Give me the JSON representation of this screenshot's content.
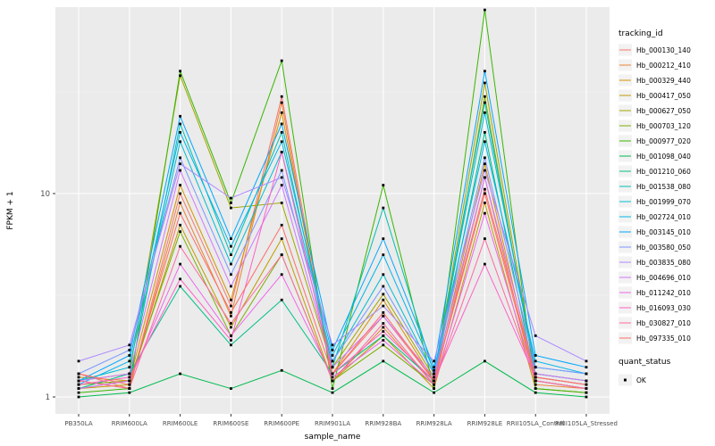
{
  "chart_data": {
    "type": "line",
    "title": "",
    "xlabel": "sample_name",
    "ylabel": "FPKM + 1",
    "y_scale": "log10",
    "y_tick_labels": [
      "1",
      "10"
    ],
    "y_tick_values": [
      1,
      10
    ],
    "y_minor_values": [
      3.1623,
      31.623
    ],
    "ylim": [
      1,
      90
    ],
    "categories": [
      "PB350LA",
      "RRIM600LA",
      "RRIM600LE",
      "RRIM600SE",
      "RRIM600PE",
      "RRIM901LA",
      "RRIM928BA",
      "RRIM928LA",
      "RRIM928LE",
      "RRII105LA_Control",
      "RRII105LA_Stressed"
    ],
    "legend": {
      "color_title": "tracking_id",
      "shape_title": "quant_status",
      "shape_entries": [
        "OK"
      ]
    },
    "colors": {
      "panel_bg": "#EBEBEB",
      "grid_major": "#FFFFFF",
      "grid_minor": "#F7F7F7",
      "point": "#000000",
      "axis_text": "#4D4D4D",
      "tick": "#333333",
      "title_text": "#000000"
    },
    "series": [
      {
        "name": "Hb_000130_140",
        "color": "#F8766D",
        "values": [
          1.3,
          1.1,
          10.0,
          2.8,
          30.0,
          1.3,
          2.5,
          1.2,
          10.0,
          1.2,
          1.1
        ]
      },
      {
        "name": "Hb_000212_410",
        "color": "#EA8331",
        "values": [
          1.2,
          1.1,
          9.0,
          2.5,
          28.0,
          1.2,
          2.2,
          1.15,
          12.0,
          1.15,
          1.1
        ]
      },
      {
        "name": "Hb_000329_440",
        "color": "#D89000",
        "values": [
          1.25,
          1.2,
          11.0,
          3.0,
          25.0,
          1.3,
          3.0,
          1.2,
          14.0,
          1.2,
          1.1
        ]
      },
      {
        "name": "Hb_000417_050",
        "color": "#C09B00",
        "values": [
          1.1,
          1.15,
          7.0,
          2.2,
          6.0,
          1.2,
          2.0,
          1.1,
          9.0,
          1.1,
          1.05
        ]
      },
      {
        "name": "Hb_000627_050",
        "color": "#A3A500",
        "values": [
          1.2,
          1.3,
          38.0,
          8.5,
          9.0,
          1.4,
          3.2,
          1.25,
          35.0,
          1.3,
          1.2
        ]
      },
      {
        "name": "Hb_000703_120",
        "color": "#7CAE00",
        "values": [
          1.15,
          1.2,
          6.5,
          2.0,
          5.0,
          1.2,
          1.8,
          1.15,
          30.0,
          1.25,
          1.15
        ]
      },
      {
        "name": "Hb_000977_020",
        "color": "#39B600",
        "values": [
          1.05,
          1.1,
          40.0,
          9.0,
          45.0,
          1.1,
          11.0,
          1.1,
          80.0,
          1.1,
          1.05
        ]
      },
      {
        "name": "Hb_001098_040",
        "color": "#00BB4E",
        "values": [
          1.0,
          1.05,
          1.3,
          1.1,
          1.35,
          1.05,
          1.5,
          1.05,
          1.5,
          1.05,
          1.0
        ]
      },
      {
        "name": "Hb_001210_060",
        "color": "#00C087",
        "values": [
          1.1,
          1.3,
          3.5,
          1.8,
          3.0,
          1.3,
          2.0,
          1.2,
          20.0,
          1.2,
          1.1
        ]
      },
      {
        "name": "Hb_001538_080",
        "color": "#00C0B2",
        "values": [
          1.1,
          1.2,
          22.0,
          5.0,
          20.0,
          1.4,
          8.5,
          1.3,
          28.0,
          1.3,
          1.2
        ]
      },
      {
        "name": "Hb_001999_070",
        "color": "#00BDD2",
        "values": [
          1.2,
          1.4,
          18.0,
          4.5,
          16.0,
          1.5,
          4.0,
          1.3,
          25.0,
          1.4,
          1.3
        ]
      },
      {
        "name": "Hb_002724_010",
        "color": "#00B5EC",
        "values": [
          1.15,
          1.5,
          20.0,
          5.5,
          18.0,
          1.6,
          5.0,
          1.35,
          18.0,
          1.5,
          1.3
        ]
      },
      {
        "name": "Hb_003145_010",
        "color": "#00A7FF",
        "values": [
          1.2,
          1.6,
          24.0,
          6.0,
          22.0,
          1.7,
          6.0,
          1.4,
          40.0,
          1.6,
          1.4
        ]
      },
      {
        "name": "Hb_003580_050",
        "color": "#7997FF",
        "values": [
          1.3,
          1.7,
          15.0,
          4.0,
          13.0,
          1.5,
          3.5,
          1.3,
          15.0,
          1.4,
          1.3
        ]
      },
      {
        "name": "Hb_003835_080",
        "color": "#AC88FF",
        "values": [
          1.5,
          1.8,
          14.0,
          9.5,
          12.0,
          1.8,
          2.8,
          1.5,
          13.0,
          2.0,
          1.5
        ]
      },
      {
        "name": "Hb_004696_010",
        "color": "#D277FF",
        "values": [
          1.2,
          1.3,
          13.0,
          3.5,
          11.0,
          1.4,
          2.5,
          1.25,
          12.0,
          1.3,
          1.2
        ]
      },
      {
        "name": "Hb_011242_010",
        "color": "#EF67EB",
        "values": [
          1.1,
          1.2,
          4.5,
          2.0,
          4.0,
          1.25,
          1.9,
          1.15,
          8.0,
          1.2,
          1.1
        ]
      },
      {
        "name": "Hb_016093_030",
        "color": "#FF61C7",
        "values": [
          1.15,
          1.25,
          3.8,
          1.9,
          16.0,
          1.3,
          2.1,
          1.2,
          4.5,
          1.25,
          1.15
        ]
      },
      {
        "name": "Hb_030827_010",
        "color": "#FF689E",
        "values": [
          1.2,
          1.1,
          5.5,
          2.3,
          5.0,
          1.2,
          2.3,
          1.15,
          6.0,
          1.2,
          1.1
        ]
      },
      {
        "name": "Hb_097335_010",
        "color": "#FF6C67",
        "values": [
          1.3,
          1.15,
          8.0,
          2.6,
          7.0,
          1.3,
          2.6,
          1.2,
          10.5,
          1.25,
          1.15
        ]
      }
    ]
  }
}
